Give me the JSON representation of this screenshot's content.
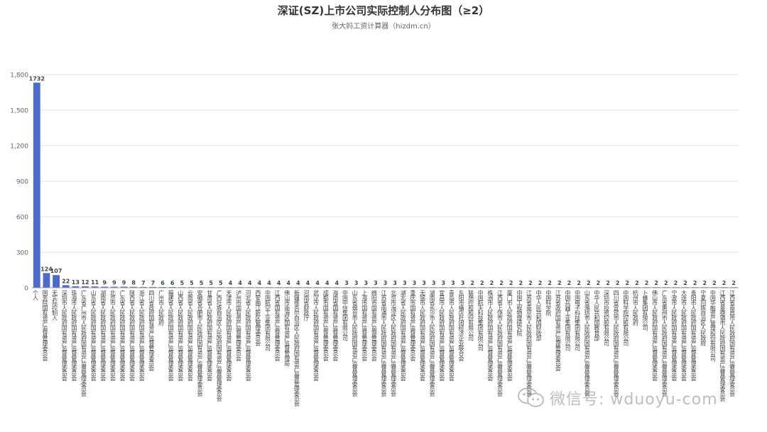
{
  "chart_data": {
    "type": "bar",
    "title": "深证(SZ)上市公司实际控制人分布图（≥2）",
    "subtitle": "张大妈工资计算器（hizdm.cn）",
    "ylim": [
      0,
      1800
    ],
    "yticks": [
      0,
      300,
      600,
      900,
      1200,
      1500,
      1800
    ],
    "ytick_labels": [
      "0",
      "300",
      "600",
      "900",
      "1,200",
      "1,500",
      "1,800"
    ],
    "grid": true,
    "bar_color": "#4d6bc6",
    "categories": [
      "个人",
      "国务院国有资产监督管理委员会",
      "无实际控制人",
      "深圳市人民政府国有资产监督管理委员会",
      "珠海市人民政府国有资产监督管理委员会",
      "广东省广州市人民政府国有资产监督管理委员会",
      "山东省人民政府国有资产监督管理委员会",
      "湖南省人民政府国有资产监督管理委员会",
      "北京市人民政府国有资产监督管理委员会",
      "广东省人民政府国有资产监督管理委员会",
      "陕西省人民政府国有资产监督管理委员会",
      "浙江省人民政府国有资产监督管理委员会",
      "四川省政府国有资产监督管理委员会",
      "广州市人民政府",
      "福建省人民政府国有资产监督管理委员会",
      "山西省人民政府国有资产监督管理委员会",
      "云南省人民政府国有资产监督管理委员会",
      "安徽省合肥市人民政府国有资产监督管理委员会",
      "甘肃省人民政府国有资产监督管理委员会",
      "广西壮族自治区人民政府国有资产监督管理委员会",
      "天津市人民政府国有资产监督管理委员会",
      "泸州市国有资产监督管理委员会",
      "河北省人民政府国有资产监督管理委员会",
      "西安曲江新区管理委员会",
      "中国航空工业集团有限公司",
      "江西省国有资产监督管理委员会",
      "佛山市南海区国有资产监督管理局",
      "新疆维吾尔自治区人民政府国有资产监督管理委员会",
      "河南省财政厅",
      "武汉市人民政府国有资产监督管理委员会",
      "成都市国有资产监督管理委员会",
      "海南省国有资产监督管理委员会",
      "中国中信集团有限公司",
      "山东省烟台市人民政府国有资产监督管理委员会",
      "上海市国有资产监督管理委员会",
      "绵阳市国有资产监督管理委员会",
      "江苏省南通市人民政府国有资产监督管理委员会",
      "北京市海淀区人民政府国有资产监督管理委员会",
      "湖北省人民政府国有资产监督管理委员会",
      "重庆市国有资产监督管理委员会",
      "无锡市人民政府国有资产监督管理委员会",
      "湖南省长沙市人民政府国有资产监督管理委员会",
      "宜昌市人民政府国有资产监督管理委员会",
      "青岛市人民政府国有资产监督管理委员会",
      "东阳市横店社团经济企业联合会",
      "联想控股股份有限公司",
      "中国航天科技集团有限公司",
      "株洲市人民政府国有资产监督管理委员会",
      "江西省上饶市人民政府国有资产监督管理委员会",
      "厦门市人民政府国有资产监督管理委员会",
      "中国工程物理研究院",
      "江苏省南京市人民政府国有资产监督管理委员会",
      "中华人民共和国财政部",
      "中国科学院",
      "江苏省政府国有资产监督管理委员会",
      "中国兵器工业集团有限公司",
      "中国电子科技集团有限公司",
      "山东省潍坊市人民政府国有资产监督管理委员会",
      "中华人民共和国教育部",
      "深圳市投资控股有限公司",
      "四川省宜宾市人民政府国有资产监督管理委员会",
      "中国科学院控股有限公司",
      "杭州市人民政府",
      "卜蜂集团有限公司",
      "佛山市人民政府国有资产监督管理委员会",
      "广东省惠州市人民政府国有资产监督管理委员会",
      "宁波市人民政府国有资产监督管理委员会",
      "大连市人民政府国有资产监督管理委员会",
      "贵阳市人民政府国有资产监督管理委员会",
      "宁夏回族自治区人民政府",
      "中国华融资产管理股份有限公司",
      "江西省景德镇市人民政府国有资产监督管理委员会",
      "江西省南昌市人民政府国有资产监督管理委员会"
    ],
    "values": [
      1732,
      124,
      107,
      22,
      13,
      12,
      11,
      9,
      9,
      9,
      8,
      7,
      7,
      6,
      6,
      5,
      5,
      5,
      5,
      5,
      4,
      4,
      4,
      4,
      4,
      4,
      4,
      4,
      4,
      4,
      4,
      4,
      3,
      3,
      3,
      3,
      3,
      3,
      3,
      3,
      3,
      3,
      3,
      3,
      3,
      2,
      2,
      2,
      2,
      2,
      2,
      2,
      2,
      2,
      2,
      2,
      2,
      2,
      2,
      2,
      2,
      2,
      2,
      2,
      2,
      2,
      2,
      2,
      2,
      2,
      2,
      2,
      2
    ]
  },
  "watermark": {
    "icon": "wechat-icon",
    "text": "微信号: wduoyu-com"
  }
}
